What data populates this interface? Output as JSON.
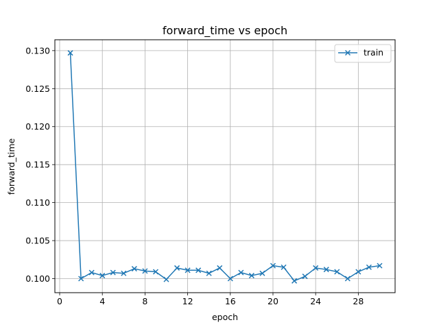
{
  "chart_data": {
    "type": "line",
    "title": "forward_time vs epoch",
    "xlabel": "epoch",
    "ylabel": "forward_time",
    "xlim": [
      -0.45,
      31.45
    ],
    "ylim": [
      0.09815,
      0.13143
    ],
    "xticks": [
      0,
      4,
      8,
      12,
      16,
      20,
      24,
      28
    ],
    "yticks": [
      0.1,
      0.105,
      0.11,
      0.115,
      0.12,
      0.125,
      0.13
    ],
    "ytick_labels": [
      "0.100",
      "0.105",
      "0.110",
      "0.115",
      "0.120",
      "0.125",
      "0.130"
    ],
    "grid": true,
    "legend_position": "top-right",
    "series": [
      {
        "name": "train",
        "color": "#1f77b4",
        "marker": "x",
        "x": [
          1,
          2,
          3,
          4,
          5,
          6,
          7,
          8,
          9,
          10,
          11,
          12,
          13,
          14,
          15,
          16,
          17,
          18,
          19,
          20,
          21,
          22,
          23,
          24,
          25,
          26,
          27,
          28,
          29,
          30
        ],
        "y": [
          0.1297,
          0.1,
          0.1008,
          0.1004,
          0.1008,
          0.1007,
          0.1013,
          0.101,
          0.1009,
          0.0999,
          0.1014,
          0.1011,
          0.1011,
          0.1007,
          0.1014,
          0.1,
          0.1008,
          0.1004,
          0.1007,
          0.1017,
          0.1015,
          0.0997,
          0.1003,
          0.1014,
          0.1012,
          0.1009,
          0.1,
          0.1009,
          0.1015,
          0.1017
        ]
      }
    ]
  }
}
